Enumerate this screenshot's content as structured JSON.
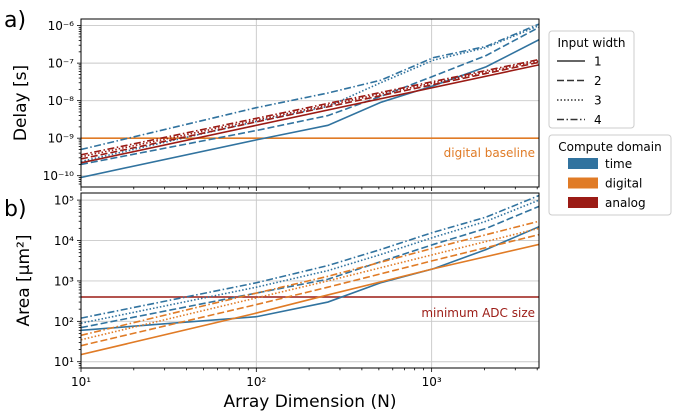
{
  "chart_data": [
    {
      "type": "line",
      "panel_label": "a)",
      "ylabel": "Delay [s]",
      "xlabel": "",
      "xscale": "log",
      "yscale": "log",
      "xlim": [
        10,
        4096
      ],
      "ylim": [
        5e-11,
        1.5e-06
      ],
      "yticks": [
        {
          "value": 1e-10,
          "label": "10⁻¹⁰"
        },
        {
          "value": 1e-09,
          "label": "10⁻⁹"
        },
        {
          "value": 1e-08,
          "label": "10⁻⁸"
        },
        {
          "value": 1e-07,
          "label": "10⁻⁷"
        },
        {
          "value": 1e-06,
          "label": "10⁻⁶"
        }
      ],
      "grid": true,
      "reference_line": {
        "value": 1e-09,
        "label": "digital baseline",
        "color": "#e07b26"
      },
      "series": [
        {
          "domain": "time",
          "width": "1",
          "points": [
            [
              10,
              9e-11
            ],
            [
              100,
              9e-10
            ],
            [
              256,
              2.2e-09
            ],
            [
              512,
              9e-09
            ],
            [
              1024,
              2.5e-08
            ],
            [
              2048,
              8e-08
            ],
            [
              4096,
              4.2e-07
            ]
          ]
        },
        {
          "domain": "time",
          "width": "2",
          "points": [
            [
              10,
              2e-10
            ],
            [
              100,
              1.6e-09
            ],
            [
              256,
              4e-09
            ],
            [
              512,
              1.3e-08
            ],
            [
              1024,
              4.5e-08
            ],
            [
              2048,
              1.6e-07
            ],
            [
              4096,
              9e-07
            ]
          ]
        },
        {
          "domain": "time",
          "width": "3",
          "points": [
            [
              10,
              2.4e-10
            ],
            [
              100,
              2.8e-09
            ],
            [
              256,
              7e-09
            ],
            [
              512,
              3e-08
            ],
            [
              1024,
              1.2e-07
            ],
            [
              2048,
              2.6e-07
            ],
            [
              4096,
              1e-06
            ]
          ]
        },
        {
          "domain": "time",
          "width": "4",
          "points": [
            [
              10,
              5e-10
            ],
            [
              100,
              6.5e-09
            ],
            [
              256,
              1.6e-08
            ],
            [
              512,
              3.5e-08
            ],
            [
              1024,
              1.4e-07
            ],
            [
              2048,
              2.8e-07
            ],
            [
              4096,
              1.1e-06
            ]
          ]
        },
        {
          "domain": "digital",
          "width": "1",
          "points": [
            [
              10,
              1e-09
            ],
            [
              4096,
              1e-09
            ]
          ]
        },
        {
          "domain": "analog",
          "width": "1",
          "points": [
            [
              10,
              2.2e-10
            ],
            [
              4096,
              9e-08
            ]
          ]
        },
        {
          "domain": "analog",
          "width": "2",
          "points": [
            [
              10,
              2.8e-10
            ],
            [
              4096,
              1.05e-07
            ]
          ]
        },
        {
          "domain": "analog",
          "width": "3",
          "points": [
            [
              10,
              3.2e-10
            ],
            [
              4096,
              1.15e-07
            ]
          ]
        },
        {
          "domain": "analog",
          "width": "4",
          "points": [
            [
              10,
              3.6e-10
            ],
            [
              4096,
              1.25e-07
            ]
          ]
        }
      ]
    },
    {
      "type": "line",
      "panel_label": "b)",
      "ylabel": "Area [μm²]",
      "xlabel": "Array Dimension (N)",
      "xscale": "log",
      "yscale": "log",
      "xlim": [
        10,
        4096
      ],
      "ylim": [
        7,
        150000.0
      ],
      "yticks": [
        {
          "value": 10,
          "label": "10¹"
        },
        {
          "value": 100,
          "label": "10²"
        },
        {
          "value": 1000,
          "label": "10³"
        },
        {
          "value": 10000,
          "label": "10⁴"
        },
        {
          "value": 100000,
          "label": "10⁵"
        }
      ],
      "xticks": [
        {
          "value": 10,
          "label": "10¹"
        },
        {
          "value": 100,
          "label": "10²"
        },
        {
          "value": 1000,
          "label": "10³"
        }
      ],
      "grid": true,
      "reference_line": {
        "value": 400,
        "label": "minimum ADC size",
        "color": "#9b1b15"
      },
      "series": [
        {
          "domain": "time",
          "width": "1",
          "points": [
            [
              10,
              60
            ],
            [
              100,
              130
            ],
            [
              256,
              300
            ],
            [
              512,
              900
            ],
            [
              1024,
              2000
            ],
            [
              2048,
              6000
            ],
            [
              4096,
              22000
            ]
          ]
        },
        {
          "domain": "time",
          "width": "2",
          "points": [
            [
              10,
              70
            ],
            [
              100,
              500
            ],
            [
              256,
              1100
            ],
            [
              512,
              3000
            ],
            [
              1024,
              8000
            ],
            [
              2048,
              20000
            ],
            [
              4096,
              70000
            ]
          ]
        },
        {
          "domain": "time",
          "width": "3",
          "points": [
            [
              10,
              90
            ],
            [
              100,
              700
            ],
            [
              256,
              1800
            ],
            [
              512,
              4500
            ],
            [
              1024,
              12000
            ],
            [
              2048,
              30000
            ],
            [
              4096,
              100000
            ]
          ]
        },
        {
          "domain": "time",
          "width": "4",
          "points": [
            [
              10,
              120
            ],
            [
              100,
              900
            ],
            [
              256,
              2400
            ],
            [
              512,
              6000
            ],
            [
              1024,
              16000
            ],
            [
              2048,
              38000
            ],
            [
              4096,
              130000
            ]
          ]
        },
        {
          "domain": "digital",
          "width": "1",
          "points": [
            [
              10,
              15
            ],
            [
              100,
              160
            ],
            [
              256,
              450
            ],
            [
              1024,
              2000
            ],
            [
              4096,
              8000
            ]
          ]
        },
        {
          "domain": "digital",
          "width": "2",
          "points": [
            [
              10,
              25
            ],
            [
              100,
              260
            ],
            [
              256,
              700
            ],
            [
              1024,
              3200
            ],
            [
              4096,
              14000
            ]
          ]
        },
        {
          "domain": "digital",
          "width": "3",
          "points": [
            [
              10,
              35
            ],
            [
              100,
              380
            ],
            [
              256,
              1000
            ],
            [
              1024,
              4500
            ],
            [
              4096,
              20000
            ]
          ]
        },
        {
          "domain": "digital",
          "width": "4",
          "points": [
            [
              10,
              45
            ],
            [
              100,
              500
            ],
            [
              256,
              1300
            ],
            [
              1024,
              6500
            ],
            [
              4096,
              30000
            ]
          ]
        },
        {
          "domain": "analog",
          "width": "1",
          "points": [
            [
              10,
              400
            ],
            [
              4096,
              400
            ]
          ]
        }
      ]
    }
  ],
  "colors": {
    "time": "#31739f",
    "digital": "#e07b26",
    "analog": "#9b1b15"
  },
  "legend_width": {
    "title": "Input width",
    "entries": [
      {
        "label": "1",
        "dash": "solid"
      },
      {
        "label": "2",
        "dash": "dashed"
      },
      {
        "label": "3",
        "dash": "dotted"
      },
      {
        "label": "4",
        "dash": "dashdot"
      }
    ]
  },
  "legend_domain": {
    "title": "Compute domain",
    "entries": [
      {
        "label": "time",
        "key": "time"
      },
      {
        "label": "digital",
        "key": "digital"
      },
      {
        "label": "analog",
        "key": "analog"
      }
    ]
  }
}
